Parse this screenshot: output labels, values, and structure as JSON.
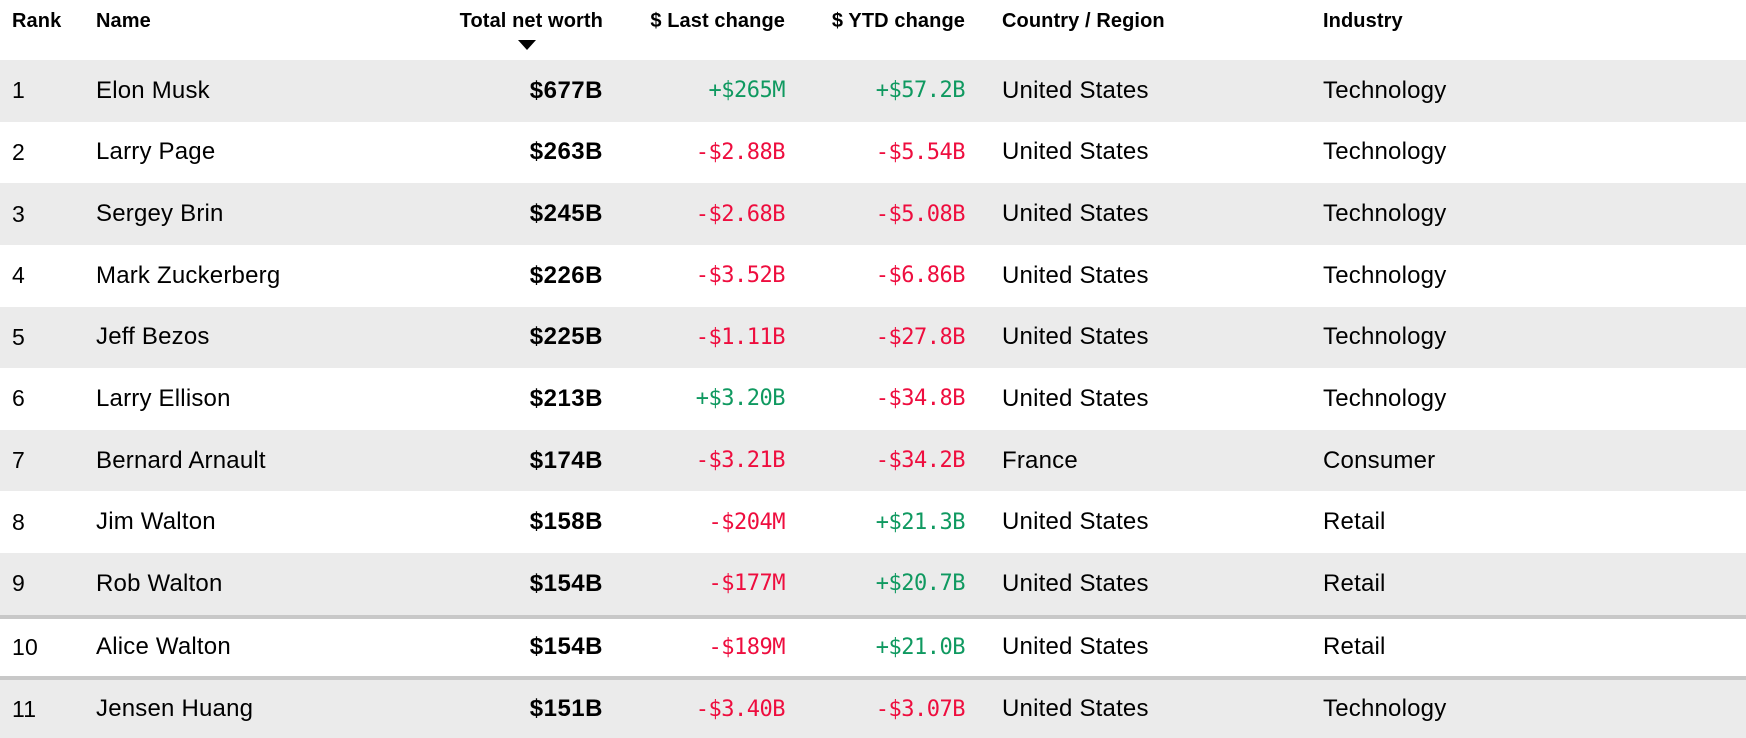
{
  "colors": {
    "positive": "#0f9960",
    "negative": "#ee0d3e",
    "row_alt": "#ebebeb",
    "divider": "#c8c8c8"
  },
  "table": {
    "columns": [
      {
        "key": "rank",
        "label": "Rank",
        "align": "left"
      },
      {
        "key": "name",
        "label": "Name",
        "align": "left"
      },
      {
        "key": "net_worth",
        "label": "Total net worth",
        "align": "right",
        "sorted": "desc"
      },
      {
        "key": "last_change",
        "label": "$ Last change",
        "align": "right"
      },
      {
        "key": "ytd_change",
        "label": "$ YTD change",
        "align": "right"
      },
      {
        "key": "country",
        "label": "Country / Region",
        "align": "left"
      },
      {
        "key": "industry",
        "label": "Industry",
        "align": "left"
      }
    ],
    "sort_indicator": {
      "column": "net_worth",
      "direction": "desc",
      "icon": "sort-desc-triangle"
    },
    "rows": [
      {
        "rank": "1",
        "name": "Elon Musk",
        "net_worth": "$677B",
        "last_change": "+$265M",
        "last_change_dir": "up",
        "ytd_change": "+$57.2B",
        "ytd_change_dir": "up",
        "country": "United States",
        "industry": "Technology"
      },
      {
        "rank": "2",
        "name": "Larry Page",
        "net_worth": "$263B",
        "last_change": "-$2.88B",
        "last_change_dir": "down",
        "ytd_change": "-$5.54B",
        "ytd_change_dir": "down",
        "country": "United States",
        "industry": "Technology"
      },
      {
        "rank": "3",
        "name": "Sergey Brin",
        "net_worth": "$245B",
        "last_change": "-$2.68B",
        "last_change_dir": "down",
        "ytd_change": "-$5.08B",
        "ytd_change_dir": "down",
        "country": "United States",
        "industry": "Technology"
      },
      {
        "rank": "4",
        "name": "Mark Zuckerberg",
        "net_worth": "$226B",
        "last_change": "-$3.52B",
        "last_change_dir": "down",
        "ytd_change": "-$6.86B",
        "ytd_change_dir": "down",
        "country": "United States",
        "industry": "Technology"
      },
      {
        "rank": "5",
        "name": "Jeff Bezos",
        "net_worth": "$225B",
        "last_change": "-$1.11B",
        "last_change_dir": "down",
        "ytd_change": "-$27.8B",
        "ytd_change_dir": "down",
        "country": "United States",
        "industry": "Technology"
      },
      {
        "rank": "6",
        "name": "Larry Ellison",
        "net_worth": "$213B",
        "last_change": "+$3.20B",
        "last_change_dir": "up",
        "ytd_change": "-$34.8B",
        "ytd_change_dir": "down",
        "country": "United States",
        "industry": "Technology"
      },
      {
        "rank": "7",
        "name": "Bernard Arnault",
        "net_worth": "$174B",
        "last_change": "-$3.21B",
        "last_change_dir": "down",
        "ytd_change": "-$34.2B",
        "ytd_change_dir": "down",
        "country": "France",
        "industry": "Consumer"
      },
      {
        "rank": "8",
        "name": "Jim Walton",
        "net_worth": "$158B",
        "last_change": "-$204M",
        "last_change_dir": "down",
        "ytd_change": "+$21.3B",
        "ytd_change_dir": "up",
        "country": "United States",
        "industry": "Retail"
      },
      {
        "rank": "9",
        "name": "Rob Walton",
        "net_worth": "$154B",
        "last_change": "-$177M",
        "last_change_dir": "down",
        "ytd_change": "+$20.7B",
        "ytd_change_dir": "up",
        "country": "United States",
        "industry": "Retail"
      },
      {
        "rank": "10",
        "name": "Alice Walton",
        "net_worth": "$154B",
        "last_change": "-$189M",
        "last_change_dir": "down",
        "ytd_change": "+$21.0B",
        "ytd_change_dir": "up",
        "country": "United States",
        "industry": "Retail"
      },
      {
        "rank": "11",
        "name": "Jensen Huang",
        "net_worth": "$151B",
        "last_change": "-$3.40B",
        "last_change_dir": "down",
        "ytd_change": "-$3.07B",
        "ytd_change_dir": "down",
        "country": "United States",
        "industry": "Technology"
      }
    ]
  }
}
